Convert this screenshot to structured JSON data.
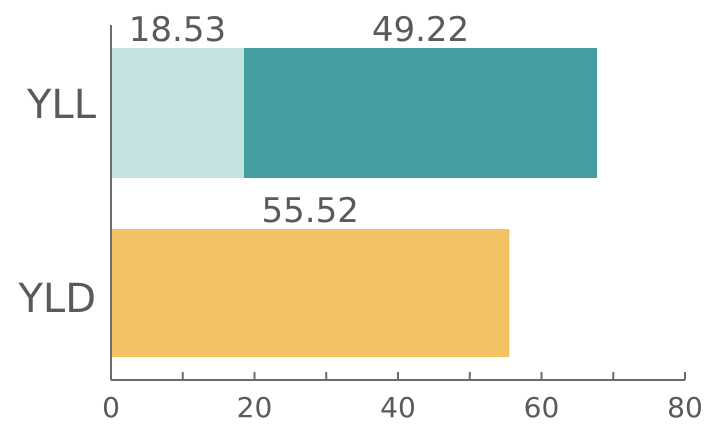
{
  "chart_data": {
    "type": "bar",
    "orientation": "horizontal",
    "stacked": true,
    "categories": [
      "YLL",
      "YLD"
    ],
    "series": [
      {
        "values": [
          18.53,
          null
        ],
        "color": "#c6e2e0"
      },
      {
        "values": [
          49.22,
          null
        ],
        "color": "#449e9f"
      },
      {
        "values": [
          null,
          55.52
        ],
        "color": "#f2c263"
      }
    ],
    "xlim": [
      0,
      80
    ],
    "x_ticks": [
      0,
      20,
      40,
      60,
      80
    ],
    "title": "",
    "xlabel": "",
    "ylabel": "",
    "grid": false,
    "legend": "none"
  }
}
